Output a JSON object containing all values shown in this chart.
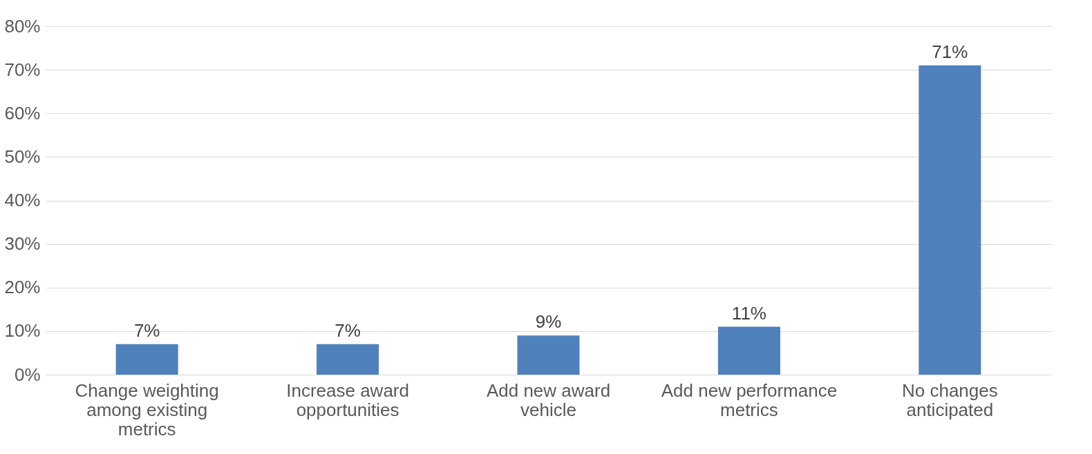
{
  "chart_data": {
    "type": "bar",
    "categories": [
      "Change weighting among existing metrics",
      "Increase award opportunities",
      "Add new award vehicle",
      "Add new performance metrics",
      "No changes anticipated"
    ],
    "values": [
      7,
      7,
      9,
      11,
      71
    ],
    "value_labels": [
      "7%",
      "7%",
      "9%",
      "11%",
      "71%"
    ],
    "color": "#4f81bd",
    "ylim": [
      0,
      80
    ],
    "yticks": [
      {
        "value": 0,
        "label": "0%"
      },
      {
        "value": 10,
        "label": "10%"
      },
      {
        "value": 20,
        "label": "20%"
      },
      {
        "value": 30,
        "label": "30%"
      },
      {
        "value": 40,
        "label": "40%"
      },
      {
        "value": 50,
        "label": "50%"
      },
      {
        "value": 60,
        "label": "60%"
      },
      {
        "value": 70,
        "label": "70%"
      },
      {
        "value": 80,
        "label": "80%"
      }
    ],
    "grid": "y"
  }
}
